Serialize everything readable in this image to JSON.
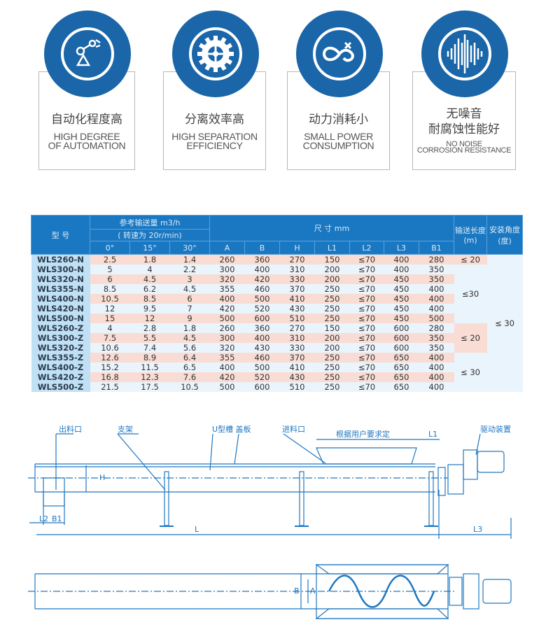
{
  "features": [
    {
      "icon": "robot-arm-icon",
      "title_cn": [
        "自动化程度高"
      ],
      "title_en": [
        "HIGH DEGREE",
        "OF AUTOMATION"
      ]
    },
    {
      "icon": "gear-icon",
      "title_cn": [
        "分离效率高"
      ],
      "title_en": [
        "HIGH SEPARATION",
        "EFFICIENCY"
      ]
    },
    {
      "icon": "infinity-plug-icon",
      "title_cn": [
        "动力消耗小"
      ],
      "title_en": [
        "SMALL POWER",
        "CONSUMPTION"
      ]
    },
    {
      "icon": "sound-wave-icon",
      "title_cn": [
        "无噪音",
        "耐腐蚀性能好"
      ],
      "title_en": [
        "NO NOISE",
        "CORROSION RESISTANCE"
      ]
    }
  ],
  "colors": {
    "brand_blue": "#1a66a8",
    "header_blue": "#1a78c2",
    "row_pink": "#f9dcd3",
    "row_blue": "#eaf4fc",
    "model_col": "#bfe0f5",
    "drawing": "#1f77c0"
  },
  "table": {
    "model_header": "型  号",
    "capacity_header": "参考输送量 m3/h",
    "speed_header": "( 转速为 20r/min)",
    "dims_header": "尺      寸      mm",
    "length_header": "输送长度(m)",
    "angle_header": "安装角度(度)",
    "angle_cols": [
      "0°",
      "15°",
      "30°"
    ],
    "dim_cols": [
      "A",
      "B",
      "H",
      "L1",
      "L2",
      "L3",
      "B1"
    ],
    "rows": [
      [
        "WLS260-N",
        "2.5",
        "1.8",
        "1.4",
        "260",
        "360",
        "270",
        "150",
        "≤70",
        "400",
        "280"
      ],
      [
        "WLS300-N",
        "5",
        "4",
        "2.2",
        "300",
        "400",
        "310",
        "200",
        "≤70",
        "400",
        "350"
      ],
      [
        "WLS320-N",
        "6",
        "4.5",
        "3",
        "320",
        "420",
        "330",
        "200",
        "≤70",
        "450",
        "350"
      ],
      [
        "WLS355-N",
        "8.5",
        "6.2",
        "4.5",
        "355",
        "460",
        "370",
        "250",
        "≤70",
        "450",
        "400"
      ],
      [
        "WLS400-N",
        "10.5",
        "8.5",
        "6",
        "400",
        "500",
        "410",
        "250",
        "≤70",
        "450",
        "400"
      ],
      [
        "WLS420-N",
        "12",
        "9.5",
        "7",
        "420",
        "520",
        "430",
        "250",
        "≤70",
        "450",
        "400"
      ],
      [
        "WLS500-N",
        "15",
        "12",
        "9",
        "500",
        "600",
        "510",
        "250",
        "≤70",
        "450",
        "500"
      ],
      [
        "WLS260-Z",
        "4",
        "2.8",
        "1.8",
        "260",
        "360",
        "270",
        "150",
        "≤70",
        "600",
        "280"
      ],
      [
        "WLS300-Z",
        "7.5",
        "5.5",
        "4.5",
        "300",
        "400",
        "310",
        "200",
        "≤70",
        "600",
        "350"
      ],
      [
        "WLS320-Z",
        "10.6",
        "7.4",
        "5.6",
        "320",
        "430",
        "330",
        "200",
        "≤70",
        "600",
        "350"
      ],
      [
        "WLS355-Z",
        "12.6",
        "8.9",
        "6.4",
        "355",
        "460",
        "370",
        "250",
        "≤70",
        "650",
        "400"
      ],
      [
        "WLS400-Z",
        "15.2",
        "11.5",
        "6.5",
        "400",
        "500",
        "410",
        "250",
        "≤70",
        "650",
        "400"
      ],
      [
        "WLS420-Z",
        "16.8",
        "12.3",
        "7.6",
        "420",
        "520",
        "430",
        "250",
        "≤70",
        "650",
        "400"
      ],
      [
        "WLS500-Z",
        "21.5",
        "17.5",
        "10.5",
        "500",
        "600",
        "510",
        "250",
        "≤70",
        "650",
        "400"
      ]
    ],
    "length_groups": [
      {
        "value": "≤ 20",
        "start": 0,
        "span": 1,
        "tone": "pink"
      },
      {
        "value": "≤30",
        "start": 1,
        "span": 6,
        "tone": "blue"
      },
      {
        "value": "≤ 20",
        "start": 7,
        "span": 3,
        "tone": "pink"
      },
      {
        "value": "≤ 30",
        "start": 10,
        "span": 4,
        "tone": "blue"
      }
    ],
    "angle_value": "≤ 30"
  },
  "drawing": {
    "labels": {
      "outlet": "出料口",
      "support": "支架",
      "trough_cover": "U型槽 盖板",
      "inlet": "进料口",
      "user_defined": "根据用户要求定",
      "l1": "L1",
      "drive": "驱动装置",
      "l2": "L2",
      "b1": "B1",
      "l": "L",
      "l3": "L3",
      "h": "H",
      "b": "B",
      "a": "A"
    }
  }
}
